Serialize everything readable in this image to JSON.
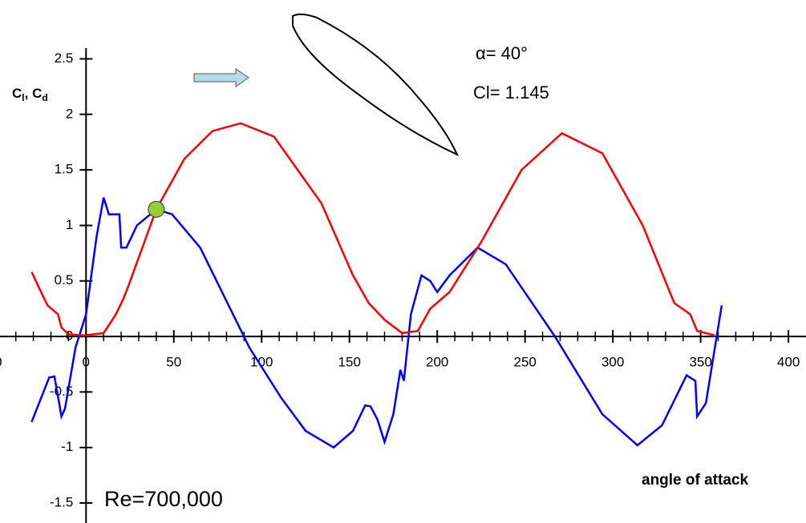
{
  "chart_data": {
    "type": "line",
    "ylabel": [
      "C",
      "l",
      ", C",
      "d"
    ],
    "xlabel": "angle of attack",
    "annotations": [
      "α= 40°",
      "Cl= 1.145",
      "Re=700,000"
    ],
    "marker": {
      "x": 40,
      "y": 1.145,
      "color": "#9acd32"
    },
    "xlim": [
      -49,
      410
    ],
    "ylim": [
      -1.68,
      3.03
    ],
    "xticks": [
      {
        "value": -50,
        "label": "0"
      },
      0,
      50,
      100,
      150,
      200,
      250,
      300,
      350,
      400
    ],
    "yticks": [
      2.5,
      2,
      1.5,
      1,
      0.5,
      0,
      -0.5,
      -1,
      -1.5
    ],
    "series": [
      {
        "name": "Cl",
        "color": "#0000ff",
        "x": [
          -31,
          -21,
          -18,
          -14,
          -12,
          -6,
          0,
          6,
          10,
          13,
          19,
          20,
          23,
          29,
          40,
          49,
          65,
          79,
          93,
          111,
          125,
          141,
          152,
          159,
          162,
          166,
          170,
          175,
          179,
          181,
          185,
          191,
          196,
          200,
          207,
          223,
          239,
          267,
          294,
          314,
          328,
          342,
          347,
          348,
          353,
          362
        ],
        "values": [
          -0.77,
          -0.37,
          -0.36,
          -0.72,
          -0.65,
          -0.1,
          0.2,
          0.9,
          1.25,
          1.1,
          1.1,
          0.8,
          0.8,
          1.0,
          1.145,
          1.1,
          0.8,
          0.35,
          -0.1,
          -0.55,
          -0.85,
          -1.0,
          -0.85,
          -0.62,
          -0.63,
          -0.75,
          -0.95,
          -0.7,
          -0.3,
          -0.4,
          0.2,
          0.55,
          0.5,
          0.4,
          0.55,
          0.8,
          0.65,
          0,
          -0.7,
          -0.98,
          -0.8,
          -0.35,
          -0.4,
          -0.72,
          -0.6,
          0.28
        ]
      },
      {
        "name": "Cd",
        "color": "#ff0000",
        "x": [
          -31,
          -22,
          -16,
          -14,
          -10,
          -1,
          10,
          17,
          21,
          24,
          40,
          56,
          72,
          88,
          107,
          134,
          152,
          161,
          170,
          180,
          189,
          196,
          207,
          225,
          248,
          271,
          294,
          317,
          335,
          344,
          348,
          358
        ],
        "values": [
          0.58,
          0.28,
          0.2,
          0.08,
          0.02,
          0.01,
          0.03,
          0.2,
          0.33,
          0.45,
          1.145,
          1.6,
          1.85,
          1.92,
          1.8,
          1.2,
          0.55,
          0.3,
          0.15,
          0.03,
          0.05,
          0.25,
          0.4,
          0.85,
          1.5,
          1.83,
          1.65,
          1.0,
          0.3,
          0.2,
          0.05,
          0.01
        ]
      }
    ]
  }
}
